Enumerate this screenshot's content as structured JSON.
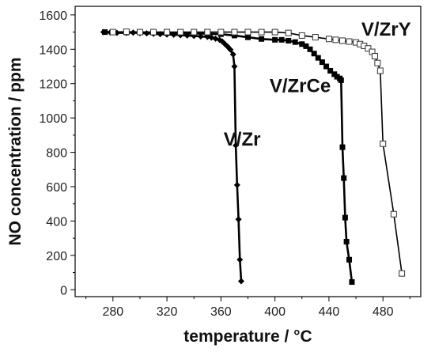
{
  "chart_data": {
    "type": "line",
    "xlabel": "temperature  / °C",
    "ylabel": "NO concentration / ppm",
    "xlim": [
      252,
      508
    ],
    "ylim": [
      -40,
      1650
    ],
    "x_ticks": [
      280,
      320,
      360,
      400,
      440,
      480
    ],
    "y_ticks": [
      0,
      200,
      400,
      600,
      800,
      1000,
      1200,
      1400,
      1600
    ],
    "grid": false,
    "legend": "none",
    "series": [
      {
        "name": "V/Zr",
        "label_anchor": [
          362,
          840
        ],
        "marker": "filled-diamond",
        "x": [
          273,
          278,
          283,
          290,
          295,
          300,
          305,
          310,
          315,
          320,
          325,
          330,
          335,
          340,
          345,
          350,
          353,
          356,
          359,
          361,
          363,
          365,
          367,
          369,
          370,
          371,
          372,
          373,
          374,
          375
        ],
        "y": [
          1500,
          1498,
          1496,
          1495,
          1497,
          1494,
          1493,
          1490,
          1488,
          1486,
          1485,
          1482,
          1480,
          1478,
          1475,
          1472,
          1468,
          1462,
          1455,
          1445,
          1430,
          1415,
          1398,
          1370,
          1300,
          840,
          610,
          410,
          175,
          50
        ]
      },
      {
        "name": "V/ZrCe",
        "label_anchor": [
          396,
          1150
        ],
        "marker": "filled-square",
        "x": [
          274,
          280,
          290,
          300,
          310,
          320,
          330,
          340,
          350,
          360,
          370,
          380,
          390,
          400,
          405,
          410,
          415,
          420,
          423,
          426,
          429,
          432,
          435,
          438,
          441,
          444,
          446,
          448,
          449,
          450,
          451,
          452,
          453,
          455,
          457
        ],
        "y": [
          1500,
          1500,
          1498,
          1498,
          1497,
          1496,
          1494,
          1492,
          1490,
          1488,
          1480,
          1470,
          1460,
          1455,
          1455,
          1450,
          1442,
          1430,
          1418,
          1400,
          1375,
          1350,
          1325,
          1300,
          1275,
          1255,
          1240,
          1230,
          1220,
          830,
          650,
          420,
          280,
          175,
          45
        ]
      },
      {
        "name": "V/ZrY",
        "label_anchor": [
          464,
          1480
        ],
        "marker": "open-square",
        "x": [
          280,
          290,
          300,
          310,
          320,
          330,
          340,
          350,
          360,
          370,
          380,
          390,
          400,
          410,
          420,
          430,
          440,
          445,
          450,
          455,
          460,
          463,
          466,
          469,
          472,
          474,
          476,
          478,
          480,
          488,
          494
        ],
        "y": [
          1500,
          1502,
          1500,
          1500,
          1500,
          1500,
          1500,
          1500,
          1500,
          1500,
          1500,
          1500,
          1500,
          1495,
          1480,
          1470,
          1460,
          1455,
          1450,
          1445,
          1440,
          1430,
          1420,
          1405,
          1385,
          1360,
          1320,
          1275,
          850,
          440,
          95
        ]
      }
    ]
  }
}
